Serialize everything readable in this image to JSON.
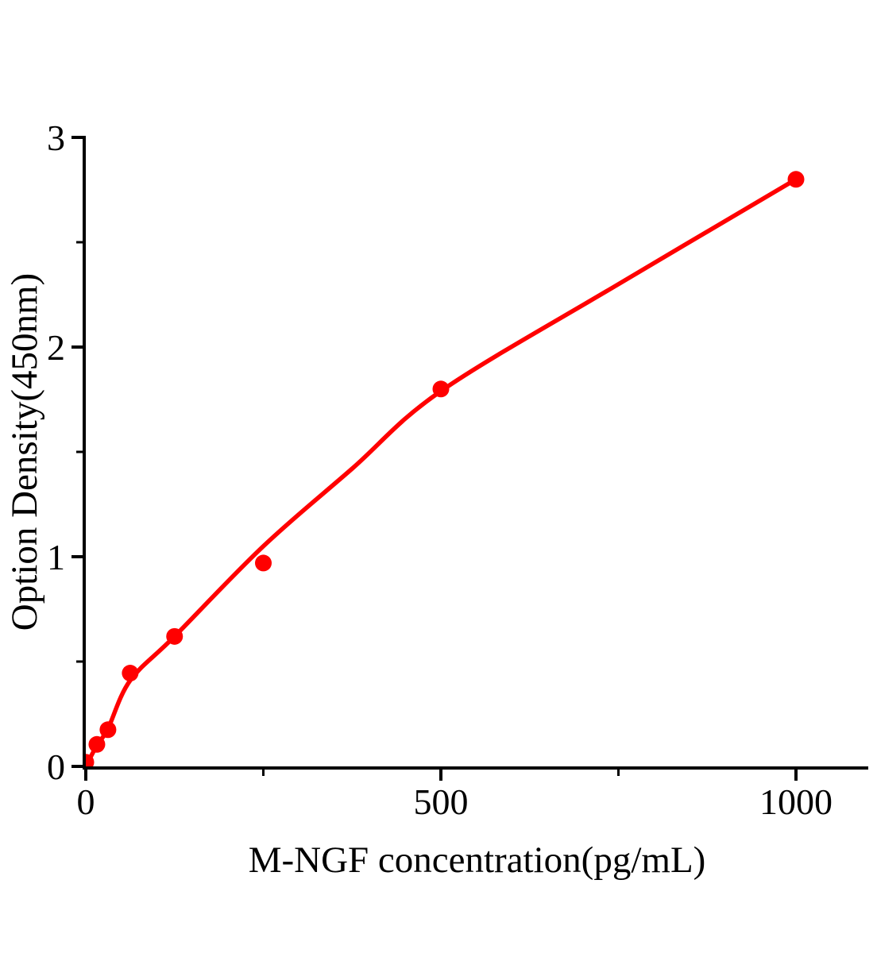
{
  "page": {
    "background_color": "#ffffff"
  },
  "chart_data": {
    "type": "scatter",
    "title": "",
    "xlabel": "M-NGF concentration(pg/mL)",
    "ylabel": "Option Density(450nm)",
    "xlim": [
      0,
      1100
    ],
    "ylim": [
      0,
      3
    ],
    "x_major_ticks": [
      0,
      500,
      1000
    ],
    "x_minor_ticks": [
      250,
      750
    ],
    "y_major_ticks": [
      0,
      1,
      2,
      3
    ],
    "y_minor_ticks": [
      0.5,
      1.5,
      2.5
    ],
    "grid": false,
    "legend": "none",
    "frame": "left-bottom-only",
    "tick_direction": "out",
    "axis_color": "#000000",
    "series": [
      {
        "name": "standard-points",
        "type": "scatter",
        "color": "#ff0000",
        "x": [
          0,
          15.6,
          31.2,
          62.5,
          125,
          250,
          500,
          1000
        ],
        "y": [
          0.02,
          0.105,
          0.175,
          0.445,
          0.62,
          0.97,
          1.8,
          2.8
        ]
      },
      {
        "name": "fitted-curve",
        "type": "line",
        "color": "#ff0000",
        "x": [
          0,
          15.6,
          31.2,
          62.5,
          125,
          250,
          375,
          500,
          750,
          1000
        ],
        "y": [
          0.0,
          0.1,
          0.18,
          0.41,
          0.62,
          1.05,
          1.42,
          1.79,
          2.3,
          2.8
        ]
      }
    ]
  }
}
